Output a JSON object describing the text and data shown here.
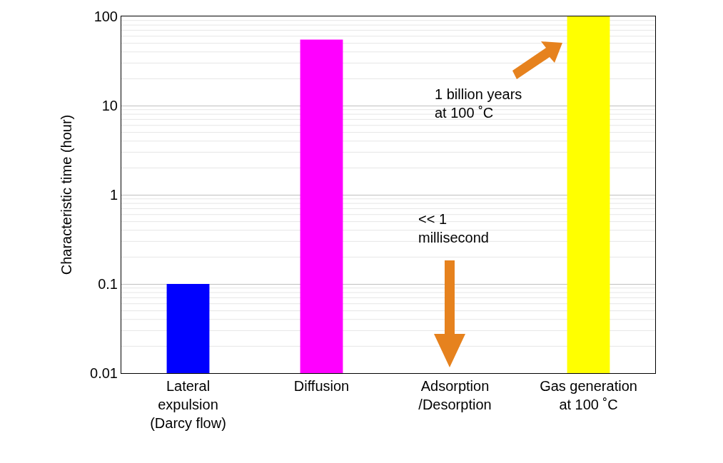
{
  "chart_data": {
    "type": "bar",
    "categories": [
      "Lateral\nexpulsion\n(Darcy flow)",
      "Diffusion",
      "Adsorption\n/Desorption",
      "Gas generation\nat 100 ˚C"
    ],
    "values": [
      0.1,
      55,
      null,
      100
    ],
    "colors": [
      "#0000ff",
      "#ff00ff",
      "#e6821e",
      "#ffff00"
    ],
    "ylabel": "Characteristic time (hour)",
    "log": true,
    "ylim": [
      0.01,
      100
    ],
    "yticks": [
      0.01,
      0.1,
      1,
      10,
      100
    ],
    "grid": true,
    "annotations": [
      "1 billion years\nat 100 ˚C",
      "<< 1\nmillisecond"
    ]
  }
}
